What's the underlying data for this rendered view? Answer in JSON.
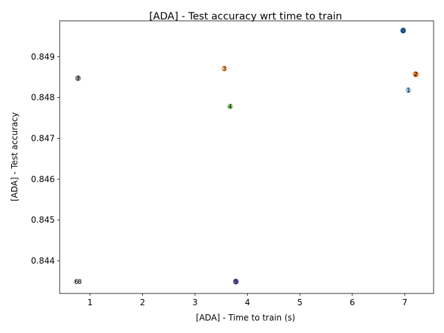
{
  "chart_data": {
    "type": "scatter",
    "title": "[ADA] - Test accuracy wrt time to train",
    "xlabel": "[ADA] - Time to train (s)",
    "ylabel": "[ADA] - Test accuracy",
    "xlim": [
      0.42,
      7.55
    ],
    "ylim": [
      0.8432,
      0.84988
    ],
    "x_ticks": [
      "1",
      "2",
      "3",
      "4",
      "5",
      "6",
      "7"
    ],
    "x_tick_values": [
      1,
      2,
      3,
      4,
      5,
      6,
      7
    ],
    "y_ticks": [
      "0.844",
      "0.845",
      "0.846",
      "0.847",
      "0.848",
      "0.849"
    ],
    "y_tick_values": [
      0.844,
      0.845,
      0.846,
      0.847,
      0.848,
      0.849
    ],
    "grid": false,
    "points": [
      {
        "label": "0",
        "x": 6.97,
        "y": 0.84964,
        "color": "#3a7ab8"
      },
      {
        "label": "1",
        "x": 7.07,
        "y": 0.84818,
        "color": "#a6c8e4"
      },
      {
        "label": "2",
        "x": 7.21,
        "y": 0.84857,
        "color": "#f07f2a"
      },
      {
        "label": "3",
        "x": 3.56,
        "y": 0.84871,
        "color": "#fdb97d"
      },
      {
        "label": "4",
        "x": 3.67,
        "y": 0.84778,
        "color": "#9ad68a"
      },
      {
        "label": "5",
        "x": 3.78,
        "y": 0.84349,
        "color": "#6a5cad"
      },
      {
        "label": "6",
        "x": 0.74,
        "y": 0.84349,
        "color": "#c4c4c4"
      },
      {
        "label": "7",
        "x": 0.77,
        "y": 0.84847,
        "color": "#8c8c8c"
      },
      {
        "label": "8",
        "x": 0.8,
        "y": 0.84349,
        "color": "#e0e0e0"
      }
    ]
  }
}
